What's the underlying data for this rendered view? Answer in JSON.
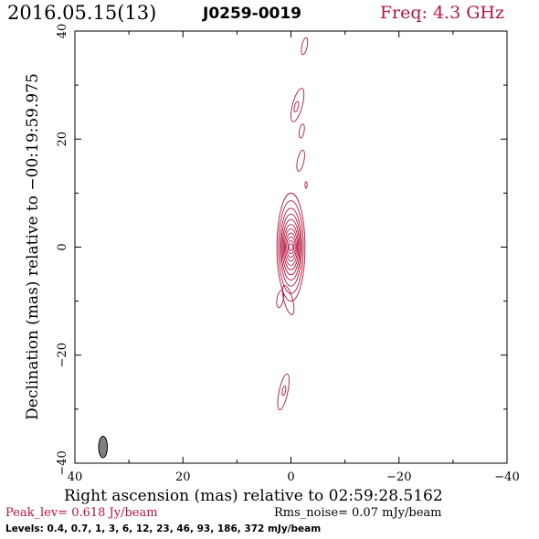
{
  "header": {
    "date_label": "2016.05.15(13)",
    "source_label": "J0259-0019",
    "freq_label": "Freq: 4.3 GHz"
  },
  "footer": {
    "peak_label": "Peak_lev=  0.618 Jy/beam",
    "rms_label": "Rms_noise= 0.07 mJy/beam",
    "levels_label": "Levels: 0.4, 0.7,   1,   3,   6,  12,  23,  46,  93, 186, 372 mJy/beam"
  },
  "colors": {
    "contour": "#b5153f",
    "accent_text": "#b5153f",
    "beam_fill": "#808080",
    "axis": "#000000"
  },
  "chart_data": {
    "type": "contour",
    "xlabel": "Right ascension (mas) relative to 02:59:28.5162",
    "ylabel": "Declination (mas) relative to −00:19:59.975",
    "xlim": [
      40,
      -40
    ],
    "ylim": [
      -40,
      40
    ],
    "xticks": [
      40,
      20,
      0,
      -20,
      -40
    ],
    "xtick_labels": [
      "40",
      "20",
      "0",
      "−20",
      "−40"
    ],
    "yticks": [
      -40,
      -20,
      0,
      20,
      40
    ],
    "ytick_labels": [
      "−40",
      "−20",
      "0",
      "20",
      "40"
    ],
    "levels_mJy_per_beam": [
      0.4,
      0.7,
      1,
      3,
      6,
      12,
      23,
      46,
      93,
      186,
      372
    ],
    "peak_Jy_per_beam": 0.618,
    "rms_noise_mJy_per_beam": 0.07,
    "beam": {
      "x": 34.8,
      "y": -37,
      "major": 4.0,
      "minor": 1.6,
      "pa": 0
    },
    "core": {
      "x": 0,
      "y": 0,
      "contours": [
        {
          "rx": 2.6,
          "ry": 10.0
        },
        {
          "rx": 2.3,
          "ry": 8.6
        },
        {
          "rx": 2.0,
          "ry": 7.2
        },
        {
          "rx": 1.8,
          "ry": 6.1
        },
        {
          "rx": 1.6,
          "ry": 5.1
        },
        {
          "rx": 1.4,
          "ry": 4.2
        },
        {
          "rx": 1.2,
          "ry": 3.4
        },
        {
          "rx": 1.0,
          "ry": 2.6
        },
        {
          "rx": 0.8,
          "ry": 1.9
        },
        {
          "rx": 0.55,
          "ry": 1.2
        },
        {
          "rx": 0.35,
          "ry": 0.6
        }
      ]
    },
    "components": [
      {
        "x": -2.5,
        "y": 37.2,
        "rx": 0.5,
        "ry": 1.6,
        "pa": 12
      },
      {
        "x": -1.2,
        "y": 26.3,
        "rx": 0.9,
        "ry": 3.2,
        "pa": 15
      },
      {
        "x": -1.0,
        "y": 26.0,
        "rx": 0.35,
        "ry": 1.0,
        "pa": 15
      },
      {
        "x": -2.0,
        "y": 21.5,
        "rx": 0.45,
        "ry": 1.3,
        "pa": 10
      },
      {
        "x": -1.8,
        "y": 16.0,
        "rx": 0.6,
        "ry": 2.0,
        "pa": 12
      },
      {
        "x": -2.8,
        "y": 11.5,
        "rx": 0.2,
        "ry": 0.6,
        "pa": 0
      },
      {
        "x": 2.0,
        "y": -9.6,
        "rx": 0.6,
        "ry": 1.6,
        "pa": 10
      },
      {
        "x": 0.5,
        "y": -9.8,
        "rx": 0.8,
        "ry": 2.8,
        "pa": -15
      },
      {
        "x": 1.4,
        "y": -26.8,
        "rx": 0.8,
        "ry": 3.4,
        "pa": 12
      },
      {
        "x": 1.3,
        "y": -26.6,
        "rx": 0.3,
        "ry": 0.9,
        "pa": 12
      }
    ]
  }
}
